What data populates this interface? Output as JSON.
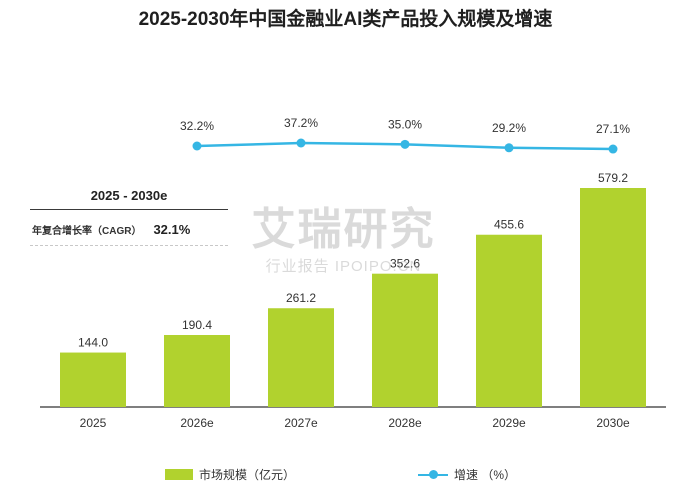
{
  "colors": {
    "bar": "#b1d22e",
    "line": "#35b6e4",
    "axis": "#333333",
    "text": "#333333"
  },
  "chart_data": {
    "type": "bar",
    "title": "2025-2030年中国金融业AI类产品投入规模及增速",
    "categories": [
      "2025",
      "2026e",
      "2027e",
      "2028e",
      "2029e",
      "2030e"
    ],
    "series": [
      {
        "name": "市场规模（亿元）",
        "type": "bar",
        "values": [
          144.0,
          190.4,
          261.2,
          352.6,
          455.6,
          579.2
        ],
        "labels": [
          "144.0",
          "190.4",
          "261.2",
          "352.6",
          "455.6",
          "579.2"
        ]
      },
      {
        "name": "增速 （%）",
        "type": "line",
        "values": [
          null,
          32.2,
          37.2,
          35.0,
          29.2,
          27.1
        ],
        "labels": [
          "",
          "32.2%",
          "37.2%",
          "35.0%",
          "29.2%",
          "27.1%"
        ]
      }
    ],
    "bar_ylim": [
      0,
      620
    ],
    "line_ylim": [
      0,
      100
    ],
    "legend_position": "bottom",
    "grid": false,
    "cagr": {
      "period": "2025 - 2030e",
      "label": "年复合增长率（CAGR）",
      "value": "32.1%"
    }
  },
  "watermark": {
    "main": "艾瑞研究",
    "sub": "行业报告 IPOIPO.CN"
  }
}
